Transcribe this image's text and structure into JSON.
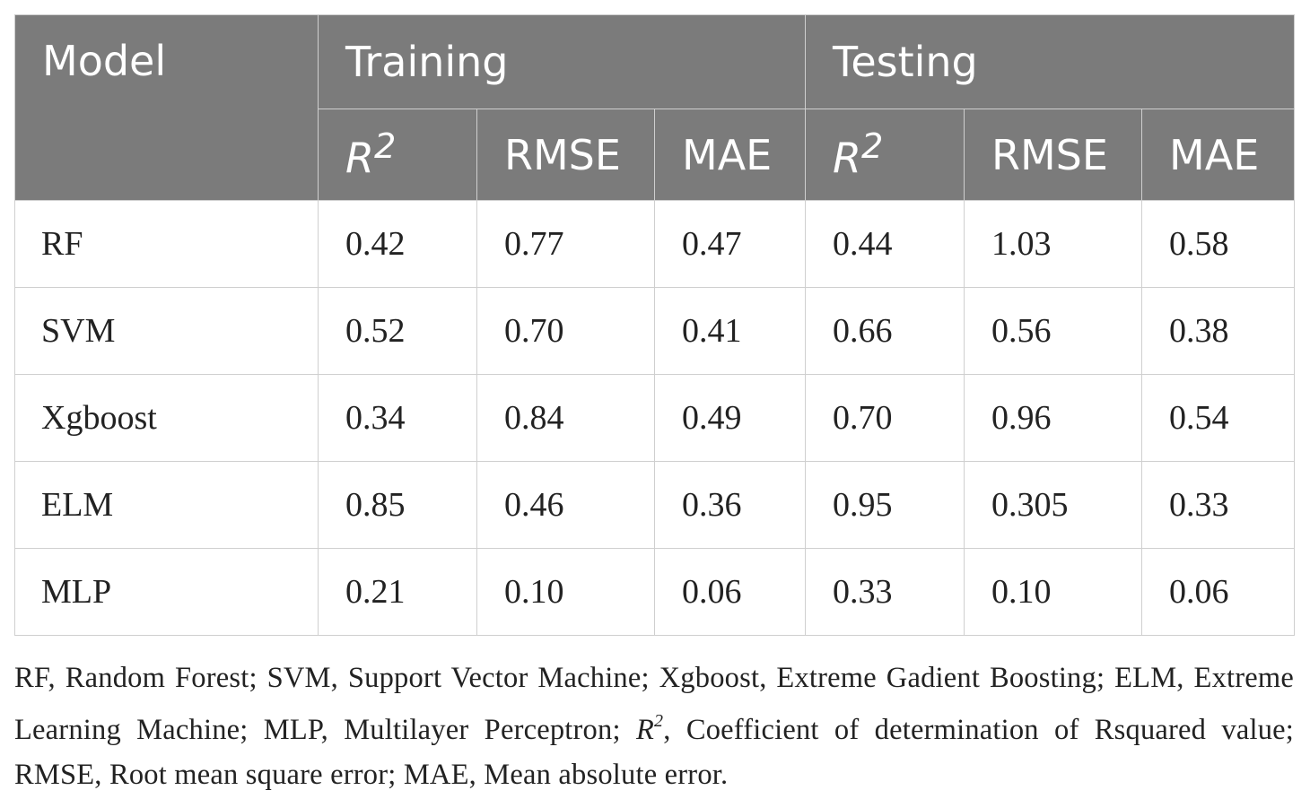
{
  "table": {
    "header": {
      "model": "Model",
      "groups": [
        "Training",
        "Testing"
      ],
      "metrics": [
        {
          "base": "R",
          "sup": "2"
        },
        {
          "base": "RMSE",
          "sup": ""
        },
        {
          "base": "MAE",
          "sup": ""
        },
        {
          "base": "R",
          "sup": "2"
        },
        {
          "base": "RMSE",
          "sup": ""
        },
        {
          "base": "MAE",
          "sup": ""
        }
      ]
    },
    "rows": [
      {
        "model": "RF",
        "values": [
          "0.42",
          "0.77",
          "0.47",
          "0.44",
          "1.03",
          "0.58"
        ]
      },
      {
        "model": "SVM",
        "values": [
          "0.52",
          "0.70",
          "0.41",
          "0.66",
          "0.56",
          "0.38"
        ]
      },
      {
        "model": "Xgboost",
        "values": [
          "0.34",
          "0.84",
          "0.49",
          "0.70",
          "0.96",
          "0.54"
        ]
      },
      {
        "model": "ELM",
        "values": [
          "0.85",
          "0.46",
          "0.36",
          "0.95",
          "0.305",
          "0.33"
        ]
      },
      {
        "model": "MLP",
        "values": [
          "0.21",
          "0.10",
          "0.06",
          "0.33",
          "0.10",
          "0.06"
        ]
      }
    ]
  },
  "footnote": {
    "part1": "RF, Random Forest; SVM, Support Vector Machine; Xgboost, Extreme Gadient Boosting; ELM, Extreme Learning Machine; MLP, Multilayer Perceptron; ",
    "r_base": "R",
    "r_sup": "2",
    "part2": ", Coefficient of determination of Rsquared value; RMSE, Root mean square error; MAE, Mean absolute error."
  },
  "colors": {
    "header_bg": "#7b7b7b",
    "header_text": "#ffffff",
    "border": "#cfcfcf"
  }
}
